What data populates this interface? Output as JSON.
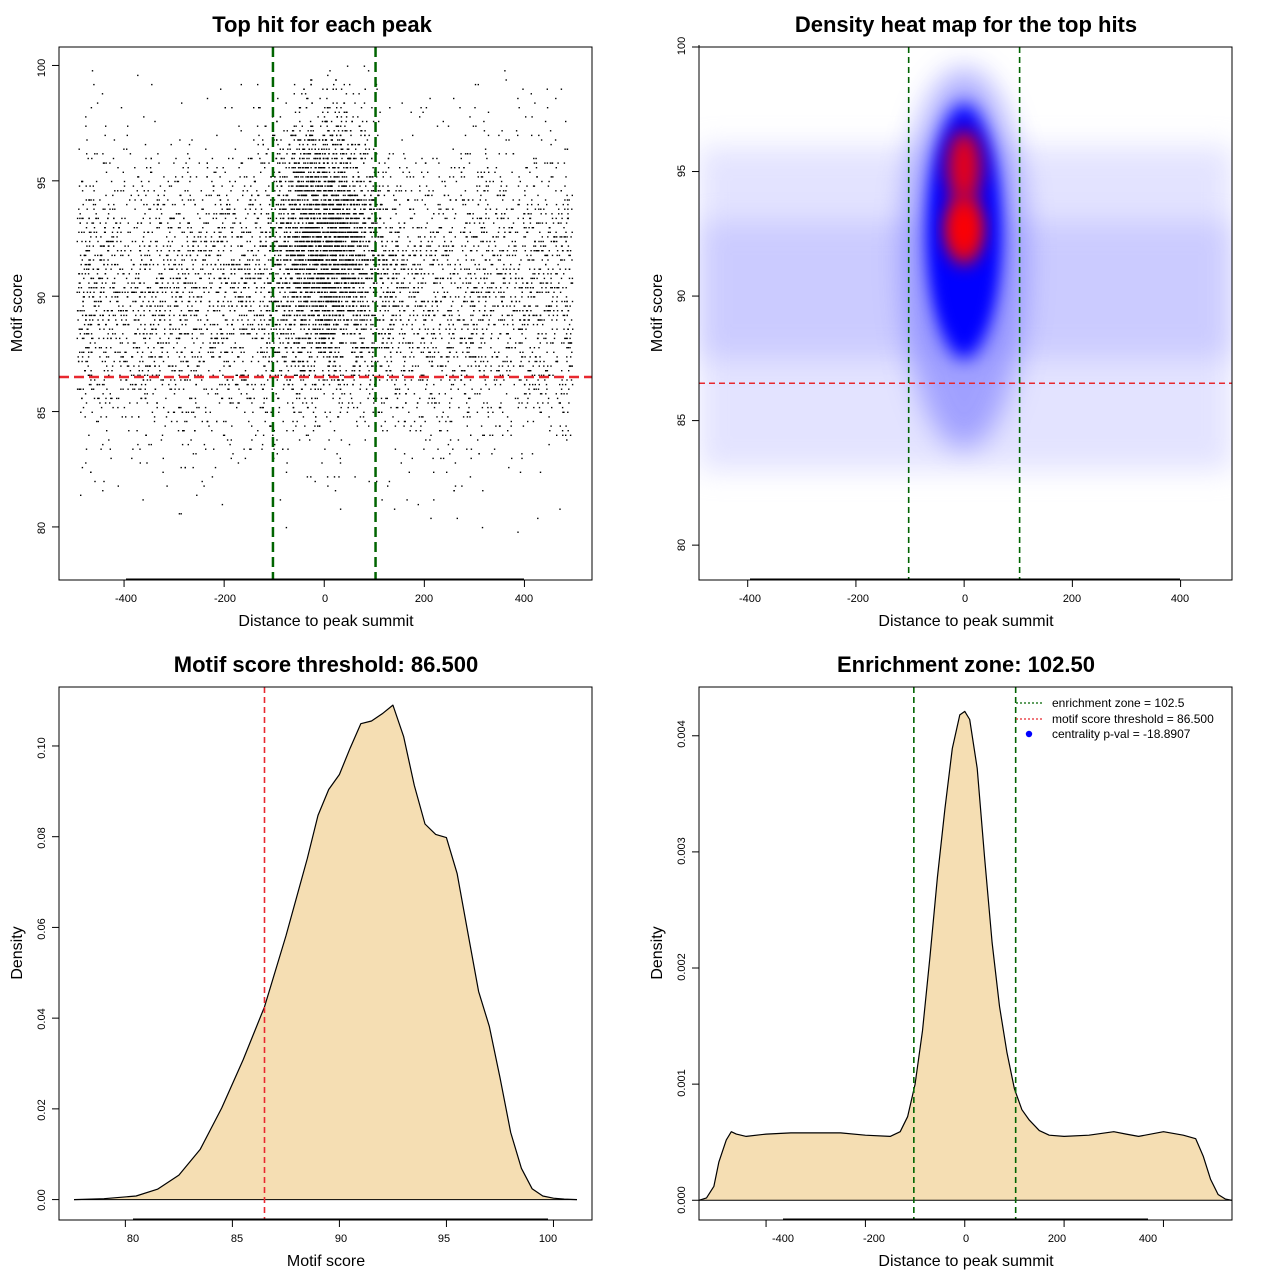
{
  "chart_data": [
    {
      "type": "scatter",
      "title": "Top hit for each peak",
      "xlabel": "Distance to peak summit",
      "ylabel": "Motif score",
      "xlim": [
        -530,
        535
      ],
      "ylim": [
        77.7,
        100.8
      ],
      "x_ticks": [
        -400,
        -200,
        0,
        200,
        400
      ],
      "x_tick_labels": [
        "-400",
        "-200",
        "0",
        "200",
        "400"
      ],
      "y_ticks": [
        80,
        85,
        90,
        95,
        100
      ],
      "y_tick_labels": [
        "80",
        "85",
        "90",
        "95",
        "100"
      ],
      "point_color": "#000000",
      "point_distribution": {
        "x_range": [
          -495,
          495
        ],
        "score_range": [
          78.5,
          100
        ],
        "central_cluster_center": 0,
        "central_cluster_spread": 55,
        "central_score_mode": 92.5,
        "background_score_mode": 90
      },
      "vlines": [
        {
          "x": -102.5,
          "color": "#006400"
        },
        {
          "x": 102.5,
          "color": "#006400"
        }
      ],
      "hlines": [
        {
          "y": 86.5,
          "color": "#e8282f"
        }
      ]
    },
    {
      "type": "heatmap",
      "title": "Density heat map for the top hits",
      "xlabel": "Distance to peak summit",
      "ylabel": "Motif score",
      "xlim": [
        -490,
        495
      ],
      "ylim": [
        78.6,
        100.0
      ],
      "x_ticks": [
        -400,
        -200,
        0,
        200,
        400
      ],
      "x_tick_labels": [
        "-400",
        "-200",
        "0",
        "200",
        "400"
      ],
      "y_ticks": [
        80,
        85,
        90,
        95,
        100
      ],
      "y_tick_labels": [
        "80",
        "85",
        "90",
        "95",
        "100"
      ],
      "colormap": [
        "#ffffff",
        "#0000ff",
        "#ff0000"
      ],
      "density_peaks": [
        {
          "x": 0,
          "y": 92.7,
          "level": "high"
        },
        {
          "x": 0,
          "y": 95.2,
          "level": "high"
        }
      ],
      "vlines": [
        {
          "x": -102.5,
          "color": "#006400"
        },
        {
          "x": 102.5,
          "color": "#006400"
        }
      ],
      "hlines": [
        {
          "y": 86.5,
          "color": "#e8282f"
        }
      ]
    },
    {
      "type": "area",
      "title": "Motif score threshold: 86.500",
      "xlabel": "Motif score",
      "ylabel": "Density",
      "xlim": [
        76.9,
        101.8
      ],
      "ylim": [
        -0.0045,
        0.113
      ],
      "x_ticks": [
        80,
        85,
        90,
        95,
        100
      ],
      "x_tick_labels": [
        "80",
        "85",
        "90",
        "95",
        "100"
      ],
      "y_ticks": [
        0.0,
        0.02,
        0.04,
        0.06,
        0.08,
        0.1
      ],
      "y_tick_labels": [
        "0.00",
        "0.02",
        "0.04",
        "0.06",
        "0.08",
        "0.10"
      ],
      "fill_color": "#f5deb3",
      "x": [
        77.6,
        79,
        80.5,
        81.5,
        82.5,
        83.5,
        84.5,
        85.5,
        86.5,
        87.5,
        88.5,
        89,
        89.5,
        90,
        90.5,
        91,
        91.5,
        92,
        92.5,
        93,
        93.5,
        94,
        94.5,
        95,
        95.5,
        96,
        96.5,
        97,
        97.5,
        98,
        98.5,
        99,
        99.5,
        100,
        100.5,
        101.1
      ],
      "y": [
        0.0,
        0.0002,
        0.0008,
        0.0023,
        0.0054,
        0.0111,
        0.0202,
        0.0308,
        0.0425,
        0.0581,
        0.0752,
        0.0847,
        0.0904,
        0.0937,
        0.0995,
        0.1049,
        0.1055,
        0.1071,
        0.109,
        0.1021,
        0.0913,
        0.0828,
        0.0805,
        0.0798,
        0.0719,
        0.0589,
        0.0459,
        0.0382,
        0.0269,
        0.0148,
        0.0069,
        0.0024,
        0.0008,
        0.0003,
        0.0001,
        0.0
      ],
      "vlines": [
        {
          "x": 86.5,
          "color": "#e8282f"
        }
      ]
    },
    {
      "type": "area",
      "title": "Enrichment zone: 102.50",
      "xlabel": "Distance to peak summit",
      "ylabel": "Density",
      "xlim": [
        -535,
        538
      ],
      "ylim": [
        -0.00017,
        0.00442
      ],
      "x_ticks": [
        -400,
        -200,
        0,
        200,
        400
      ],
      "x_tick_labels": [
        "-400",
        "-200",
        "0",
        "200",
        "400"
      ],
      "y_ticks": [
        0.0,
        0.001,
        0.002,
        0.003,
        0.004
      ],
      "y_tick_labels": [
        "0.000",
        "0.001",
        "0.002",
        "0.003",
        "0.004"
      ],
      "fill_color": "#f5deb3",
      "x": [
        -535,
        -520,
        -505,
        -495,
        -480,
        -470,
        -460,
        -440,
        -400,
        -350,
        -300,
        -250,
        -200,
        -150,
        -130,
        -115,
        -100,
        -85,
        -70,
        -55,
        -40,
        -25,
        -10,
        0,
        10,
        25,
        40,
        55,
        70,
        85,
        100,
        115,
        130,
        150,
        170,
        200,
        250,
        300,
        325,
        350,
        400,
        440,
        465,
        480,
        495,
        510,
        525,
        538
      ],
      "y": [
        0.0,
        2e-05,
        0.00012,
        0.00033,
        0.00052,
        0.00059,
        0.00057,
        0.00055,
        0.00057,
        0.00058,
        0.00058,
        0.00058,
        0.00056,
        0.00055,
        0.00059,
        0.00072,
        0.001,
        0.00146,
        0.0021,
        0.00278,
        0.00337,
        0.00389,
        0.00418,
        0.00421,
        0.00414,
        0.00372,
        0.00295,
        0.00222,
        0.00167,
        0.00127,
        0.00096,
        0.00078,
        0.00069,
        0.0006,
        0.00056,
        0.00055,
        0.00056,
        0.00059,
        0.00057,
        0.00055,
        0.00059,
        0.00056,
        0.00053,
        0.00038,
        0.00018,
        5e-05,
        1e-05,
        0.0
      ],
      "vlines": [
        {
          "x": -102.5,
          "color": "#006400"
        },
        {
          "x": 102.5,
          "color": "#006400"
        }
      ],
      "legend": {
        "position": "top-right",
        "entries": [
          {
            "label": "enrichment zone = 102.5",
            "color": "#006400",
            "style": "dotted-line"
          },
          {
            "label": "motif score threshold = 86.500",
            "color": "#e8282f",
            "style": "dotted-line"
          },
          {
            "label": "centrality p-val = -18.8907",
            "color": "#0000ff",
            "style": "point"
          }
        ]
      }
    }
  ]
}
